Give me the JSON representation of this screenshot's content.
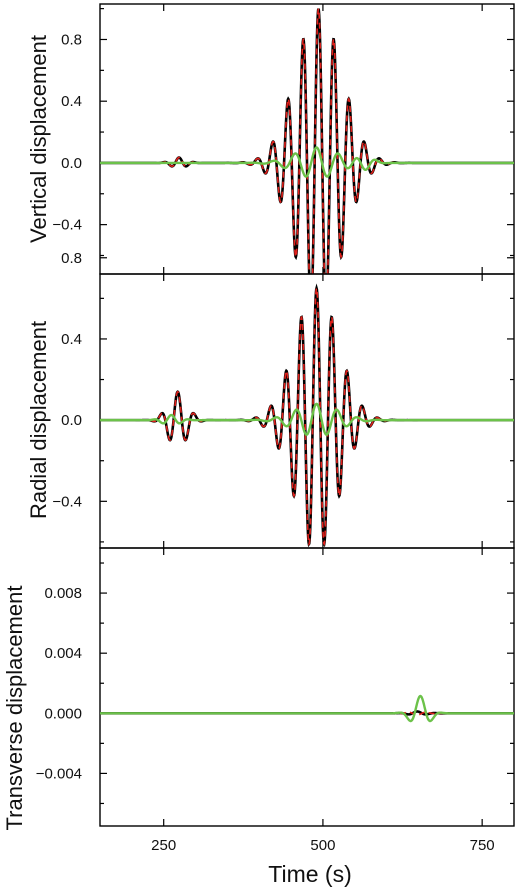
{
  "figure": {
    "xlabel": "Time (s)",
    "x_tick_labels": [
      "250",
      "500",
      "750"
    ]
  },
  "chart_data": [
    {
      "type": "line",
      "ylabel": "Vertical displacement",
      "xlim": [
        150,
        800
      ],
      "ylim": [
        -0.72,
        1.03
      ],
      "x_ticks": [
        250,
        500,
        750
      ],
      "y_ticks": [
        -0.4,
        0.0,
        0.4,
        0.8
      ],
      "y_tick_labels": [
        "−0.4",
        "0.0",
        "0.4",
        "0.8"
      ],
      "grid": false,
      "series": [
        {
          "style": "black-solid",
          "color": "#000000",
          "wavelets": [
            {
              "center": 493,
              "amp": 1.0,
              "period": 24,
              "sigma": 36
            },
            {
              "center": 274,
              "amp": 0.035,
              "period": 24,
              "sigma": 12
            }
          ]
        },
        {
          "style": "red-dashed",
          "color": "#e0201b",
          "wavelets": [
            {
              "center": 493,
              "amp": 1.0,
              "period": 24,
              "sigma": 36
            },
            {
              "center": 274,
              "amp": 0.035,
              "period": 24,
              "sigma": 12
            }
          ]
        },
        {
          "style": "green-solid",
          "color": "#6cc24a",
          "wavelets": [
            {
              "center": 490,
              "amp": 0.1,
              "period": 34,
              "sigma": 34
            },
            {
              "center": 566,
              "amp": -0.045,
              "period": 34,
              "sigma": 13
            }
          ]
        }
      ]
    },
    {
      "type": "line",
      "ylabel": "Radial displacement",
      "xlim": [
        150,
        800
      ],
      "ylim": [
        -0.63,
        0.72
      ],
      "x_ticks": [
        250,
        500,
        750
      ],
      "y_ticks": [
        -0.4,
        0.0,
        0.4,
        0.8
      ],
      "y_tick_labels": [
        "−0.4",
        "0.0",
        "0.4",
        "0.8"
      ],
      "grid": false,
      "series": [
        {
          "style": "black-solid",
          "color": "#000000",
          "wavelets": [
            {
              "center": 490,
              "amp": 0.65,
              "period": 24,
              "sigma": 34
            },
            {
              "center": 272,
              "amp": 0.14,
              "period": 26,
              "sigma": 15
            }
          ]
        },
        {
          "style": "red-dashed",
          "color": "#e0201b",
          "wavelets": [
            {
              "center": 490,
              "amp": 0.65,
              "period": 24,
              "sigma": 34
            },
            {
              "center": 272,
              "amp": 0.14,
              "period": 26,
              "sigma": 15
            }
          ]
        },
        {
          "style": "green-solid",
          "color": "#6cc24a",
          "wavelets": [
            {
              "center": 490,
              "amp": 0.08,
              "period": 32,
              "sigma": 34
            },
            {
              "center": 262,
              "amp": 0.025,
              "period": 28,
              "sigma": 14
            }
          ]
        }
      ]
    },
    {
      "type": "line",
      "ylabel": "Transverse displacement",
      "xlim": [
        150,
        800
      ],
      "ylim": [
        -0.0075,
        0.011
      ],
      "x_ticks": [
        250,
        500,
        750
      ],
      "y_ticks": [
        -0.004,
        0.0,
        0.004,
        0.008
      ],
      "y_tick_labels": [
        "−0.004",
        "0.000",
        "0.004",
        "0.008"
      ],
      "grid": false,
      "series": [
        {
          "style": "black-solid",
          "color": "#000000",
          "wavelets": [
            {
              "center": 648,
              "amp": 0.00012,
              "period": 30,
              "sigma": 14
            }
          ]
        },
        {
          "style": "red-dashed",
          "color": "#e0201b",
          "wavelets": [
            {
              "center": 648,
              "amp": -0.00012,
              "period": 30,
              "sigma": 14
            }
          ]
        },
        {
          "style": "green-solid",
          "color": "#6cc24a",
          "wavelets": [
            {
              "center": 653,
              "amp": 0.00115,
              "period": 36,
              "sigma": 13
            }
          ]
        }
      ]
    }
  ]
}
